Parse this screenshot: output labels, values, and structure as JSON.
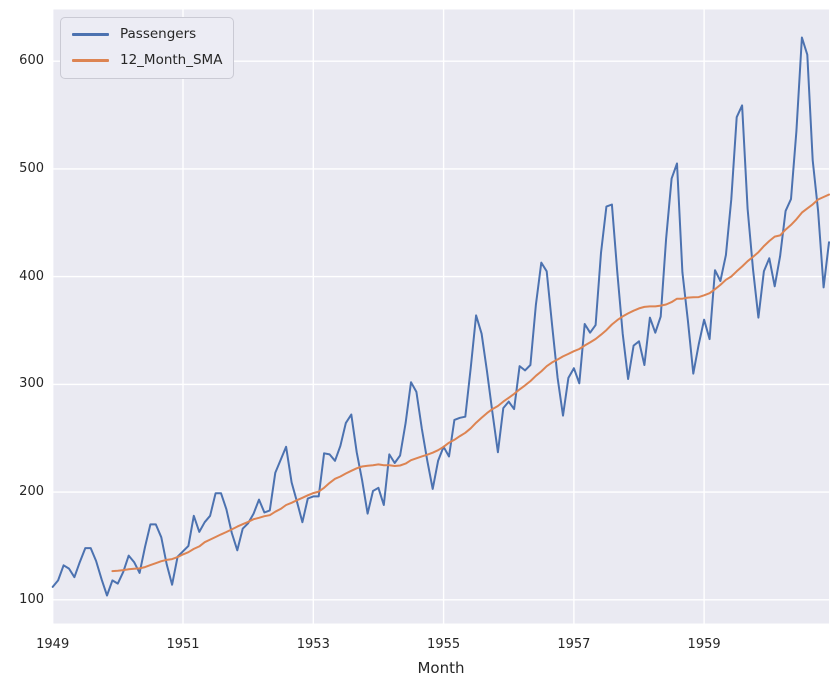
{
  "figure": {
    "background": "#FFFFFF",
    "axes_background": "#EAEAF2",
    "grid_color": "#FFFFFF",
    "text_color": "#262626"
  },
  "chart_data": {
    "type": "line",
    "title": "",
    "xlabel": "Month",
    "ylabel": "",
    "grid": true,
    "legend_position": "upper left",
    "x_axis": {
      "label": "Month",
      "start": "1949-01",
      "end": "1960-12",
      "freq": "monthly",
      "tick_labels": [
        "1949",
        "1951",
        "1953",
        "1955",
        "1957",
        "1959"
      ],
      "tick_month_indices": [
        0,
        24,
        48,
        72,
        96,
        120
      ],
      "xlim_month_indices": [
        0,
        143
      ]
    },
    "y_axis": {
      "ticks": [
        100,
        200,
        300,
        400,
        500,
        600
      ],
      "ylim": [
        78,
        648
      ]
    },
    "series": [
      {
        "name": "Passengers",
        "color": "#4C72B0",
        "start_month_index": 0,
        "values": [
          112,
          118,
          132,
          129,
          121,
          135,
          148,
          148,
          136,
          119,
          104,
          118,
          115,
          126,
          141,
          135,
          125,
          149,
          170,
          170,
          158,
          133,
          114,
          140,
          145,
          150,
          178,
          163,
          172,
          178,
          199,
          199,
          184,
          162,
          146,
          166,
          171,
          180,
          193,
          181,
          183,
          218,
          230,
          242,
          209,
          191,
          172,
          194,
          196,
          196,
          236,
          235,
          229,
          243,
          264,
          272,
          237,
          211,
          180,
          201,
          204,
          188,
          235,
          227,
          234,
          264,
          302,
          293,
          259,
          229,
          203,
          229,
          242,
          233,
          267,
          269,
          270,
          315,
          364,
          347,
          312,
          274,
          237,
          278,
          284,
          277,
          317,
          313,
          318,
          374,
          413,
          405,
          355,
          306,
          271,
          306,
          315,
          301,
          356,
          348,
          355,
          422,
          465,
          467,
          404,
          347,
          305,
          336,
          340,
          318,
          362,
          348,
          363,
          435,
          491,
          505,
          404,
          359,
          310,
          337,
          360,
          342,
          406,
          396,
          420,
          472,
          548,
          559,
          463,
          407,
          362,
          405,
          417,
          391,
          419,
          461,
          472,
          535,
          622,
          606,
          508,
          461,
          390,
          432
        ]
      },
      {
        "name": "12_Month_SMA",
        "color": "#DD8452",
        "start_month_index": 11,
        "window": 12,
        "values": [
          126.67,
          126.92,
          127.58,
          128.33,
          128.83,
          129.17,
          130.33,
          132.17,
          134.0,
          135.83,
          137.0,
          137.83,
          139.67,
          142.17,
          144.17,
          147.25,
          149.58,
          153.5,
          155.92,
          158.33,
          160.75,
          162.92,
          165.33,
          168.0,
          170.17,
          172.33,
          174.83,
          176.08,
          177.58,
          178.5,
          181.83,
          184.42,
          188.0,
          190.08,
          192.5,
          194.67,
          197.0,
          199.08,
          200.42,
          204.0,
          208.5,
          212.33,
          214.42,
          217.25,
          219.75,
          222.08,
          223.75,
          224.42,
          225.0,
          225.67,
          225.0,
          224.92,
          224.25,
          224.67,
          226.42,
          229.58,
          231.33,
          233.17,
          234.67,
          236.58,
          238.92,
          242.08,
          245.83,
          248.5,
          252.0,
          255.0,
          259.25,
          264.42,
          268.92,
          273.33,
          277.08,
          279.92,
          284.0,
          287.5,
          291.17,
          295.33,
          299.0,
          303.0,
          307.92,
          312.0,
          316.83,
          320.42,
          323.08,
          325.92,
          328.25,
          330.83,
          332.83,
          336.08,
          339.0,
          342.08,
          346.08,
          350.42,
          355.58,
          359.67,
          363.08,
          365.92,
          368.42,
          370.5,
          371.92,
          372.42,
          372.42,
          373.08,
          374.17,
          376.33,
          379.5,
          379.5,
          380.5,
          380.92,
          381.0,
          382.67,
          384.67,
          388.33,
          392.33,
          397.08,
          400.17,
          404.92,
          409.42,
          414.33,
          418.33,
          422.67,
          428.33,
          433.08,
          437.17,
          438.25,
          443.67,
          448.0,
          453.25,
          459.42,
          463.33,
          467.08,
          471.58,
          473.92,
          476.17
        ]
      }
    ]
  }
}
